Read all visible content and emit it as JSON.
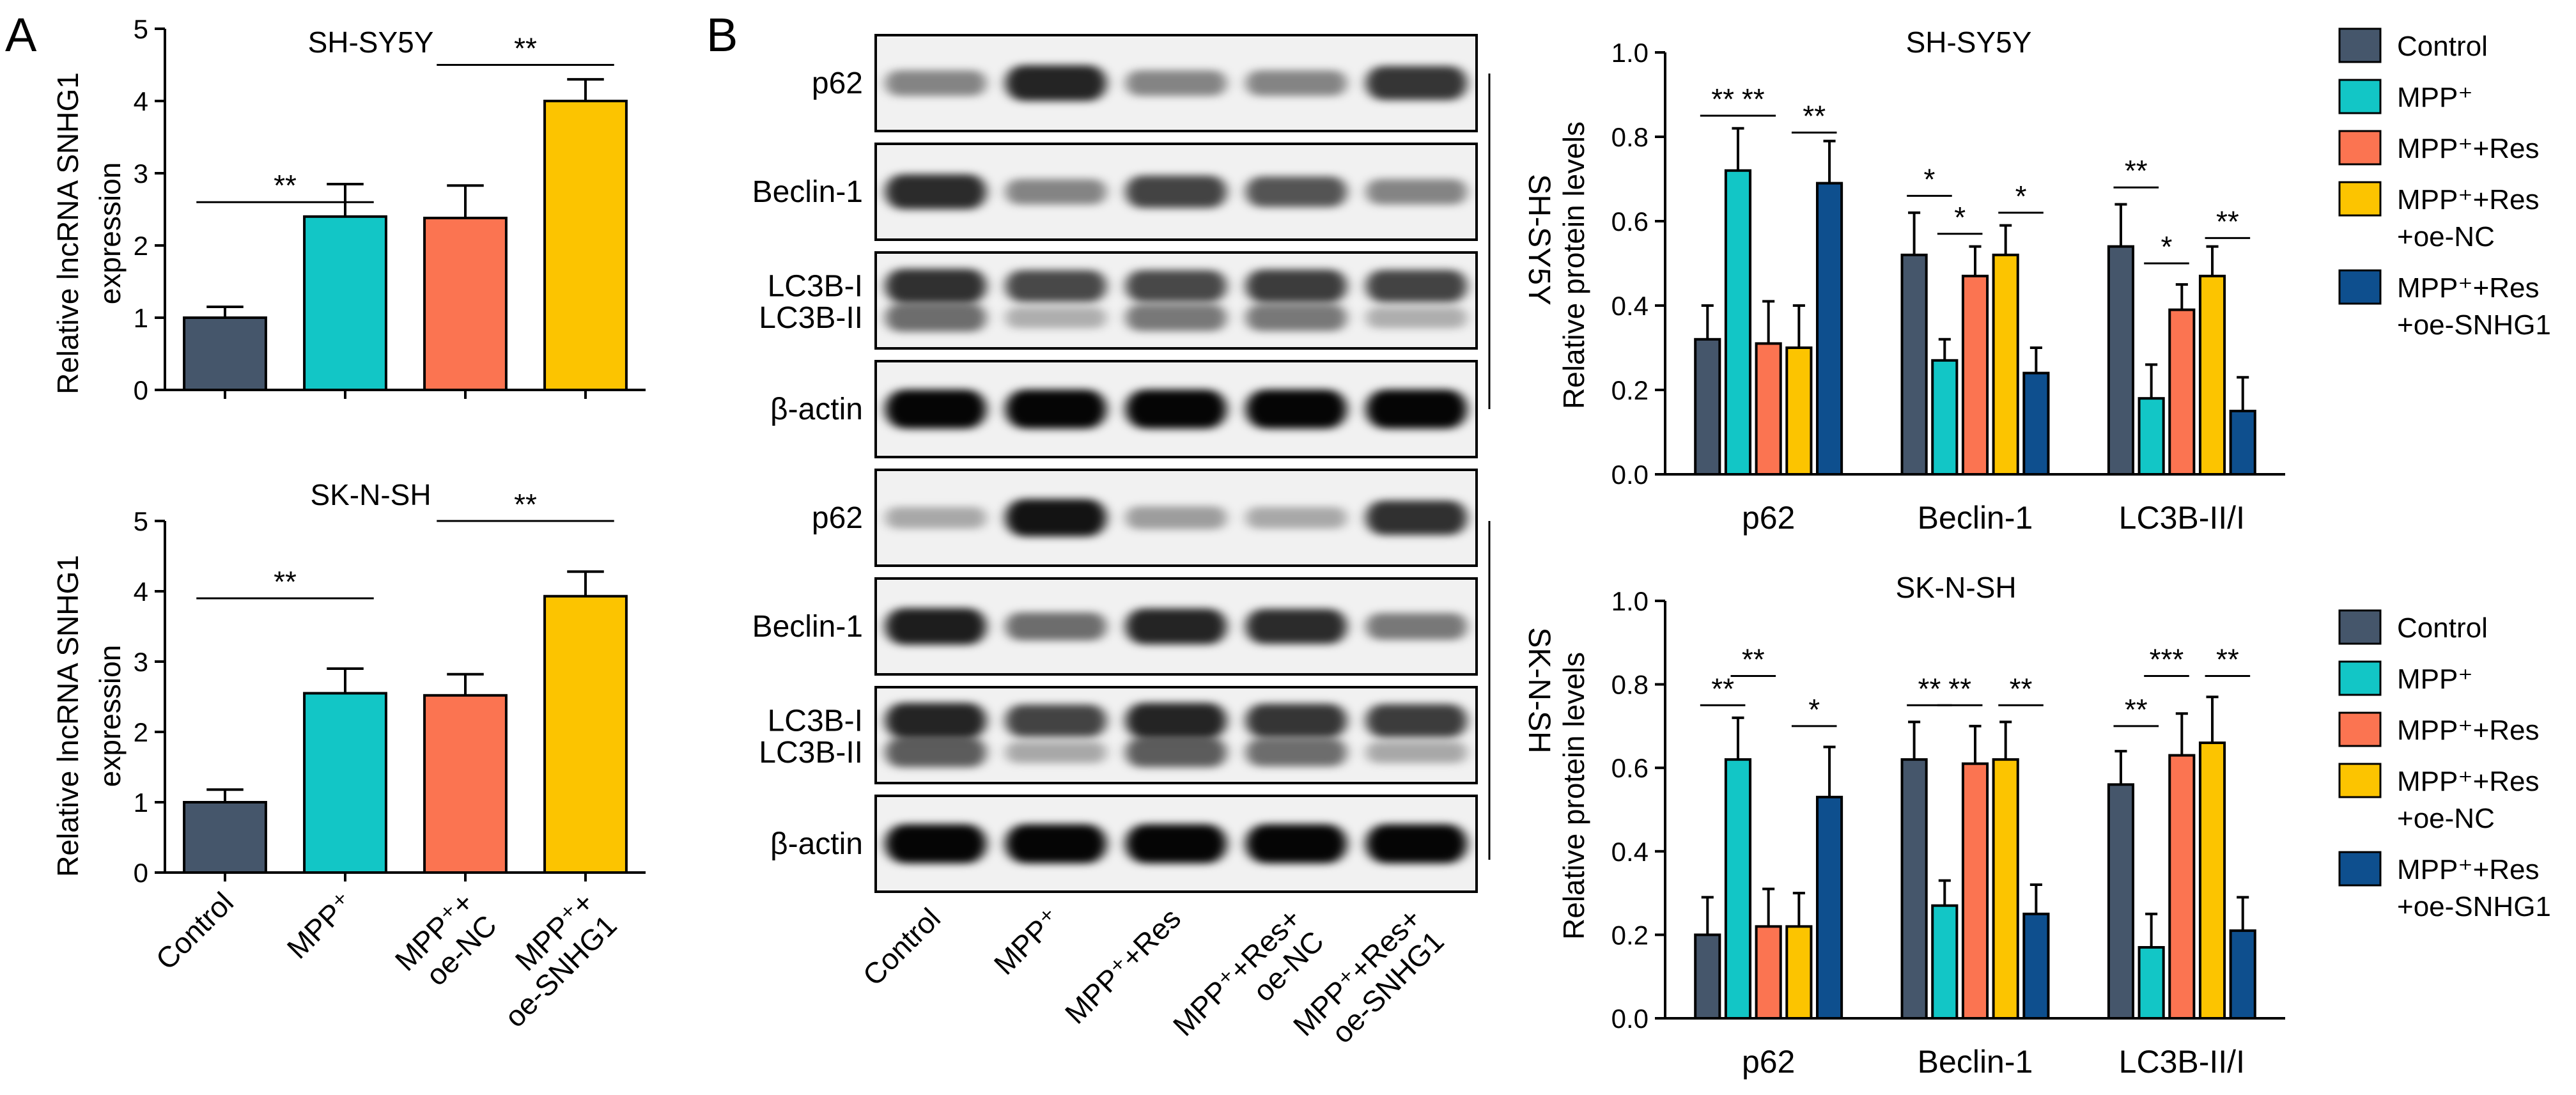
{
  "panel_labels": [
    "A",
    "B"
  ],
  "colors": {
    "Control": "#45566b",
    "MPP": "#12c6c6",
    "MPP_Res": "#fb7451",
    "MPP_Res_oeNC": "#fcc400",
    "MPP_Res_oeSNHG1": "#0e4f8e"
  },
  "chart_data": [
    {
      "id": "A_top",
      "type": "bar",
      "title": "SH-SY5Y",
      "ylabel_lines": [
        "Relative lncRNA SNHG1",
        "expression"
      ],
      "ylim": [
        0,
        5
      ],
      "yticks": [
        0,
        1,
        2,
        3,
        4,
        5
      ],
      "categories": [
        "Control",
        "MPP+",
        "MPP+ + oe-NC",
        "MPP+ + oe-SNHG1"
      ],
      "values": [
        1.0,
        2.4,
        2.38,
        4.0
      ],
      "errors": [
        0.15,
        0.45,
        0.45,
        0.3
      ],
      "significance": [
        {
          "from": 0,
          "to": 1,
          "label": "**",
          "y": 2.6
        },
        {
          "from": 2,
          "to": 3,
          "label": "**",
          "y": 4.5
        }
      ]
    },
    {
      "id": "A_bottom",
      "type": "bar",
      "title": "SK-N-SH",
      "ylabel_lines": [
        "Relative lncRNA SNHG1",
        "expression"
      ],
      "ylim": [
        0,
        5
      ],
      "yticks": [
        0,
        1,
        2,
        3,
        4,
        5
      ],
      "categories": [
        "Control",
        "MPP+",
        "MPP+ + oe-NC",
        "MPP+ + oe-SNHG1"
      ],
      "xtick_lines": [
        [
          "Control"
        ],
        [
          "MPP⁺"
        ],
        [
          "MPP⁺+",
          "oe-NC"
        ],
        [
          "MPP⁺+",
          "oe-SNHG1"
        ]
      ],
      "values": [
        1.0,
        2.55,
        2.52,
        3.93
      ],
      "errors": [
        0.18,
        0.35,
        0.3,
        0.35
      ],
      "significance": [
        {
          "from": 0,
          "to": 1,
          "label": "**",
          "y": 3.9
        },
        {
          "from": 2,
          "to": 3,
          "label": "**",
          "y": 5.0
        }
      ]
    },
    {
      "id": "B_top",
      "type": "bar",
      "title": "SH-SY5Y",
      "ylabel": "Relative protein levels",
      "ylim": [
        0,
        1.0
      ],
      "yticks": [
        0.0,
        0.2,
        0.4,
        0.6,
        0.8,
        1.0
      ],
      "categories": [
        "p62",
        "Beclin-1",
        "LC3B-II/I"
      ],
      "series": [
        {
          "name": "Control",
          "values": [
            0.32,
            0.52,
            0.54
          ],
          "errors": [
            0.08,
            0.1,
            0.1
          ]
        },
        {
          "name": "MPP⁺",
          "values": [
            0.72,
            0.27,
            0.18
          ],
          "errors": [
            0.1,
            0.05,
            0.08
          ]
        },
        {
          "name": "MPP⁺+Res",
          "values": [
            0.31,
            0.47,
            0.39
          ],
          "errors": [
            0.1,
            0.07,
            0.06
          ]
        },
        {
          "name": "MPP⁺+Res +oe-NC",
          "values": [
            0.3,
            0.52,
            0.47
          ],
          "errors": [
            0.1,
            0.07,
            0.07
          ]
        },
        {
          "name": "MPP⁺+Res +oe-SNHG1",
          "values": [
            0.69,
            0.24,
            0.15
          ],
          "errors": [
            0.1,
            0.06,
            0.08
          ]
        }
      ],
      "significance": [
        {
          "group": 0,
          "from": 0,
          "to": 1,
          "label": "**",
          "y": 0.85
        },
        {
          "group": 0,
          "from": 1,
          "to": 2,
          "label": "**",
          "y": 0.85
        },
        {
          "group": 0,
          "from": 3,
          "to": 4,
          "label": "**",
          "y": 0.81
        },
        {
          "group": 1,
          "from": 0,
          "to": 1,
          "label": "*",
          "y": 0.66
        },
        {
          "group": 1,
          "from": 1,
          "to": 2,
          "label": "*",
          "y": 0.57
        },
        {
          "group": 1,
          "from": 3,
          "to": 4,
          "label": "*",
          "y": 0.62
        },
        {
          "group": 2,
          "from": 0,
          "to": 1,
          "label": "**",
          "y": 0.68
        },
        {
          "group": 2,
          "from": 1,
          "to": 2,
          "label": "*",
          "y": 0.5
        },
        {
          "group": 2,
          "from": 3,
          "to": 4,
          "label": "**",
          "y": 0.56
        }
      ],
      "legend": {
        "position": "right"
      }
    },
    {
      "id": "B_bottom",
      "type": "bar",
      "title": "SK-N-SH",
      "ylabel": "Relative protein levels",
      "ylim": [
        0,
        1.0
      ],
      "yticks": [
        0.0,
        0.2,
        0.4,
        0.6,
        0.8,
        1.0
      ],
      "categories": [
        "p62",
        "Beclin-1",
        "LC3B-II/I"
      ],
      "series": [
        {
          "name": "Control",
          "values": [
            0.2,
            0.62,
            0.56
          ],
          "errors": [
            0.09,
            0.09,
            0.08
          ]
        },
        {
          "name": "MPP⁺",
          "values": [
            0.62,
            0.27,
            0.17
          ],
          "errors": [
            0.1,
            0.06,
            0.08
          ]
        },
        {
          "name": "MPP⁺+Res",
          "values": [
            0.22,
            0.61,
            0.63
          ],
          "errors": [
            0.09,
            0.09,
            0.1
          ]
        },
        {
          "name": "MPP⁺+Res +oe-NC",
          "values": [
            0.22,
            0.62,
            0.66
          ],
          "errors": [
            0.08,
            0.09,
            0.11
          ]
        },
        {
          "name": "MPP⁺+Res +oe-SNHG1",
          "values": [
            0.53,
            0.25,
            0.21
          ],
          "errors": [
            0.12,
            0.07,
            0.08
          ]
        }
      ],
      "significance": [
        {
          "group": 0,
          "from": 0,
          "to": 1,
          "label": "**",
          "y": 0.75
        },
        {
          "group": 0,
          "from": 1,
          "to": 2,
          "label": "**",
          "y": 0.82
        },
        {
          "group": 0,
          "from": 3,
          "to": 4,
          "label": "*",
          "y": 0.7
        },
        {
          "group": 1,
          "from": 0,
          "to": 1,
          "label": "**",
          "y": 0.75
        },
        {
          "group": 1,
          "from": 1,
          "to": 2,
          "label": "**",
          "y": 0.75
        },
        {
          "group": 1,
          "from": 3,
          "to": 4,
          "label": "**",
          "y": 0.75
        },
        {
          "group": 2,
          "from": 0,
          "to": 1,
          "label": "**",
          "y": 0.7
        },
        {
          "group": 2,
          "from": 1,
          "to": 2,
          "label": "***",
          "y": 0.82
        },
        {
          "group": 2,
          "from": 3,
          "to": 4,
          "label": "**",
          "y": 0.82
        }
      ],
      "legend": {
        "position": "right"
      }
    }
  ],
  "blots": {
    "cell_lines": [
      "SH-SY5Y",
      "SK-N-SH"
    ],
    "lanes": [
      "Control",
      "MPP⁺",
      "MPP⁺+Res",
      "MPP⁺+Res+ oe-NC",
      "MPP⁺+Res+ oe-SNHG1"
    ],
    "lane_lines": [
      [
        "Control"
      ],
      [
        "MPP⁺"
      ],
      [
        "MPP⁺+Res"
      ],
      [
        "MPP⁺+Res+",
        "oe-NC"
      ],
      [
        "MPP⁺+Res+",
        "oe-SNHG1"
      ]
    ],
    "panels": [
      {
        "label_lines": [
          "p62"
        ],
        "band_intensity": [
          [
            0.45,
            0.85,
            0.45,
            0.45,
            0.78
          ]
        ]
      },
      {
        "label_lines": [
          "Beclin-1"
        ],
        "band_intensity": [
          [
            0.82,
            0.45,
            0.72,
            0.65,
            0.45
          ]
        ]
      },
      {
        "label_lines": [
          "LC3B-I",
          "LC3B-II"
        ],
        "band_intensity": [
          [
            0.8,
            0.7,
            0.7,
            0.75,
            0.72
          ],
          [
            0.55,
            0.28,
            0.5,
            0.5,
            0.28
          ]
        ]
      },
      {
        "label_lines": [
          "β-actin"
        ],
        "band_intensity": [
          [
            0.98,
            0.98,
            0.98,
            0.98,
            0.98
          ]
        ]
      },
      {
        "label_lines": [
          "p62"
        ],
        "band_intensity": [
          [
            0.3,
            0.92,
            0.35,
            0.3,
            0.8
          ]
        ]
      },
      {
        "label_lines": [
          "Beclin-1"
        ],
        "band_intensity": [
          [
            0.88,
            0.55,
            0.85,
            0.82,
            0.5
          ]
        ]
      },
      {
        "label_lines": [
          "LC3B-I",
          "LC3B-II"
        ],
        "band_intensity": [
          [
            0.85,
            0.72,
            0.85,
            0.78,
            0.75
          ],
          [
            0.62,
            0.3,
            0.62,
            0.55,
            0.3
          ]
        ]
      },
      {
        "label_lines": [
          "β-actin"
        ],
        "band_intensity": [
          [
            0.98,
            0.98,
            0.98,
            0.98,
            0.98
          ]
        ]
      }
    ]
  }
}
